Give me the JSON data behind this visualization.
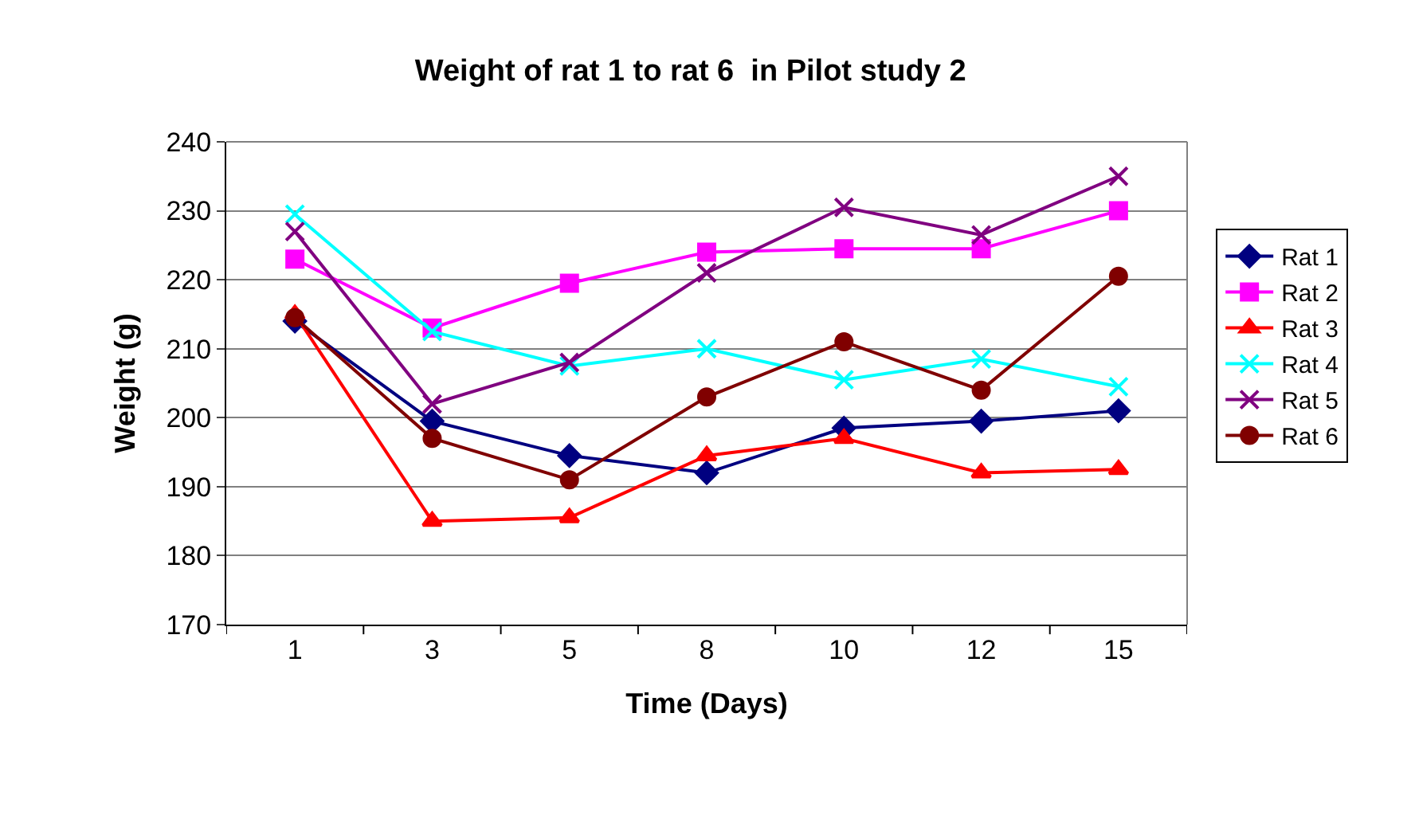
{
  "chart_data": {
    "type": "line",
    "title": "Weight of rat 1 to rat 6  in Pilot study 2",
    "xlabel": "Time (Days)",
    "ylabel": "Weight (g)",
    "categories": [
      "1",
      "3",
      "5",
      "8",
      "10",
      "12",
      "15"
    ],
    "ylim": [
      170,
      240
    ],
    "yticks": [
      170,
      180,
      190,
      200,
      210,
      220,
      230,
      240
    ],
    "grid": "y",
    "legend": "right",
    "series": [
      {
        "name": "Rat 1",
        "color": "#000080",
        "marker": "diamond",
        "values": [
          214,
          199.5,
          194.5,
          192,
          198.5,
          199.5,
          201
        ]
      },
      {
        "name": "Rat 2",
        "color": "#ff00ff",
        "marker": "square",
        "values": [
          223,
          213,
          219.5,
          224,
          224.5,
          224.5,
          230
        ]
      },
      {
        "name": "Rat 3",
        "color": "#ff0000",
        "marker": "triangle",
        "values": [
          215,
          185,
          185.5,
          194.5,
          197,
          192,
          192.5
        ]
      },
      {
        "name": "Rat 4",
        "color": "#00ffff",
        "marker": "cross",
        "values": [
          229.5,
          212.5,
          207.5,
          210,
          205.5,
          208.5,
          204.5
        ]
      },
      {
        "name": "Rat 5",
        "color": "#800080",
        "marker": "cross",
        "values": [
          227,
          202,
          208,
          221,
          230.5,
          226.5,
          235
        ]
      },
      {
        "name": "Rat 6",
        "color": "#800000",
        "marker": "circle",
        "values": [
          214.5,
          197,
          191,
          203,
          211,
          204,
          220.5
        ]
      }
    ]
  }
}
